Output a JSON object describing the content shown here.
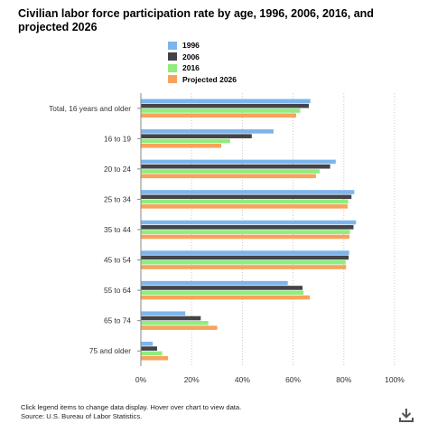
{
  "chart_data": {
    "type": "bar",
    "orientation": "horizontal",
    "title": "Civilian labor force participation rate by age, 1996, 2006, 2016, and projected 2026",
    "categories": [
      "Total, 16 years and older",
      "16 to 19",
      "20 to 24",
      "25 to 34",
      "35 to 44",
      "45 to 54",
      "55 to 64",
      "65 to 74",
      "75 and older"
    ],
    "series": [
      {
        "name": "1996",
        "color": "#7cb5ec",
        "values": [
          66.8,
          52.3,
          76.8,
          84.1,
          84.8,
          82.1,
          57.9,
          17.5,
          4.7
        ]
      },
      {
        "name": "2006",
        "color": "#434348",
        "values": [
          66.2,
          43.7,
          74.6,
          83.0,
          83.8,
          81.9,
          63.7,
          23.6,
          6.4
        ]
      },
      {
        "name": "2016",
        "color": "#90ed7d",
        "values": [
          62.8,
          35.2,
          70.5,
          81.7,
          82.4,
          80.7,
          64.1,
          26.6,
          8.4
        ]
      },
      {
        "name": "Projected 2026",
        "color": "#f7a35c",
        "values": [
          61.2,
          31.7,
          69.0,
          81.5,
          82.2,
          80.9,
          66.6,
          30.1,
          10.7
        ]
      }
    ],
    "xlim": [
      0,
      100
    ],
    "x_ticks": [
      "0%",
      "20%",
      "40%",
      "60%",
      "80%",
      "100%"
    ],
    "grid": true,
    "legend_position": "top"
  },
  "footer": {
    "note": "Click legend items to change data display. Hover over chart to view data.",
    "source": "Source: U.S. Bureau of Labor Statistics."
  },
  "icons": {
    "download": "download-icon"
  }
}
